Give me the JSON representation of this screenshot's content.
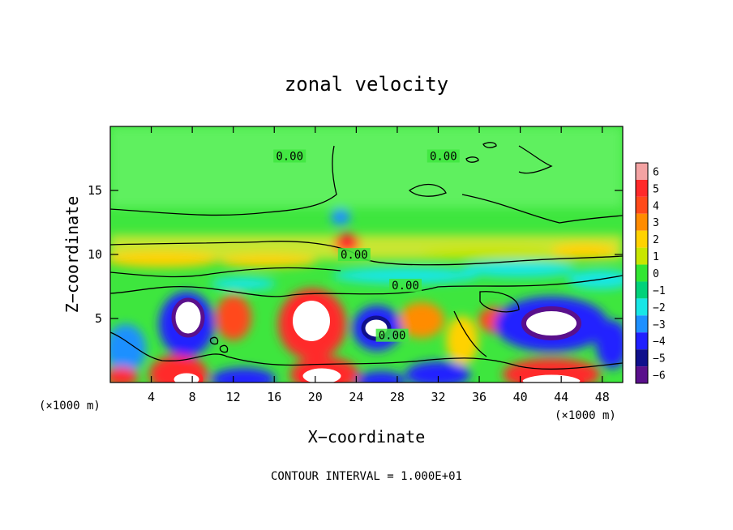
{
  "chart_data": {
    "type": "heatmap",
    "title": "zonal velocity",
    "xlabel": "X−coordinate",
    "ylabel": "Z−coordinate",
    "x_unit_left": "(×1000 m)",
    "x_unit_right": "(×1000 m)",
    "footer": "CONTOUR INTERVAL = 1.000E+01",
    "xlim": [
      0,
      50
    ],
    "ylim": [
      0,
      20
    ],
    "x_ticks": [
      4,
      8,
      12,
      16,
      20,
      24,
      28,
      32,
      36,
      40,
      44,
      48
    ],
    "y_ticks": [
      5,
      10,
      15
    ],
    "colorbar": {
      "levels": [
        6,
        5,
        4,
        3,
        2,
        1,
        0,
        -1,
        -2,
        -3,
        -4,
        -5,
        -6
      ],
      "colors": [
        "#f4a3a3",
        "#ff2a2a",
        "#ff4a1a",
        "#ff8c00",
        "#ffd200",
        "#c8e600",
        "#32e632",
        "#00d27a",
        "#18e6e6",
        "#1e90ff",
        "#2020ff",
        "#10108c",
        "#5a108c"
      ]
    },
    "contour_labels": [
      {
        "text": "0.00",
        "x": 17.5,
        "y": 17.5
      },
      {
        "text": "0.00",
        "x": 32.5,
        "y": 17.5
      },
      {
        "text": "0.00",
        "x": 23.8,
        "y": 9.8
      },
      {
        "text": "0.00",
        "x": 28.8,
        "y": 7.4
      },
      {
        "text": "0.00",
        "x": 27.5,
        "y": 3.5
      }
    ]
  }
}
